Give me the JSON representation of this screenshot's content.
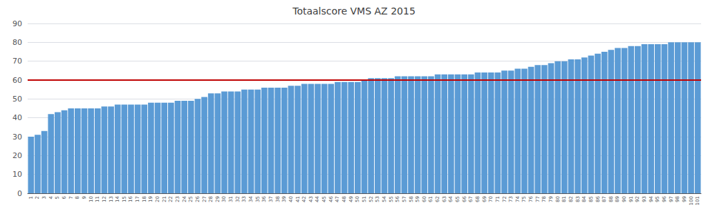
{
  "chart_data": {
    "type": "bar",
    "title": "Totaalscore VMS AZ 2015",
    "categories": [
      "1",
      "2",
      "3",
      "4",
      "5",
      "6",
      "7",
      "8",
      "9",
      "10",
      "11",
      "12",
      "13",
      "14",
      "15",
      "16",
      "17",
      "18",
      "19",
      "20",
      "21",
      "22",
      "23",
      "24",
      "25",
      "26",
      "27",
      "28",
      "29",
      "30",
      "31",
      "32",
      "33",
      "34",
      "35",
      "36",
      "37",
      "38",
      "39",
      "40",
      "41",
      "42",
      "43",
      "44",
      "45",
      "46",
      "47",
      "48",
      "49",
      "50",
      "51",
      "52",
      "53",
      "54",
      "55",
      "56",
      "57",
      "58",
      "59",
      "60",
      "61",
      "62",
      "63",
      "64",
      "65",
      "66",
      "67",
      "68",
      "69",
      "70",
      "71",
      "72",
      "73",
      "74",
      "75",
      "76",
      "77",
      "78",
      "79",
      "80",
      "81",
      "82",
      "83",
      "84",
      "85",
      "86",
      "87",
      "88",
      "89",
      "90",
      "91",
      "92",
      "93",
      "94",
      "95",
      "96",
      "97",
      "98",
      "99",
      "100",
      "101"
    ],
    "values": [
      30,
      31,
      33,
      42,
      43,
      44,
      45,
      45,
      45,
      45,
      45,
      46,
      46,
      47,
      47,
      47,
      47,
      47,
      48,
      48,
      48,
      48,
      49,
      49,
      49,
      50,
      51,
      53,
      53,
      54,
      54,
      54,
      55,
      55,
      55,
      56,
      56,
      56,
      56,
      57,
      57,
      58,
      58,
      58,
      58,
      58,
      59,
      59,
      59,
      59,
      60,
      61,
      61,
      61,
      61,
      62,
      62,
      62,
      62,
      62,
      62,
      63,
      63,
      63,
      63,
      63,
      63,
      64,
      64,
      64,
      64,
      65,
      65,
      66,
      66,
      67,
      68,
      68,
      69,
      70,
      70,
      71,
      71,
      72,
      73,
      74,
      75,
      76,
      77,
      77,
      78,
      78,
      79,
      79,
      79,
      79,
      80,
      80,
      80,
      80,
      80
    ],
    "color": "#5B9BD5",
    "reference_line": {
      "value": 60,
      "color": "#C00000"
    },
    "ylim": [
      0,
      90
    ],
    "yticks": [
      0,
      10,
      20,
      30,
      40,
      50,
      60,
      70,
      80,
      90
    ],
    "grid": true
  }
}
